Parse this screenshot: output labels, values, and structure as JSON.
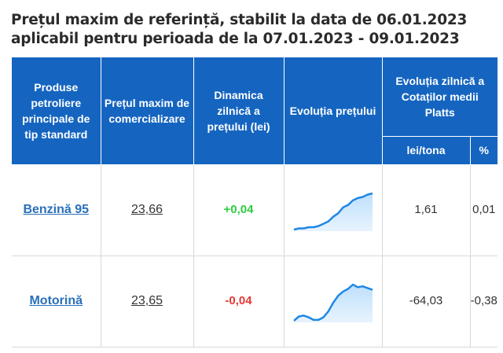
{
  "title_line1": "Prețul maxim de referință, stabilit la data de 06.01.2023",
  "title_line2": "aplicabil pentru perioada de la 07.01.2023 - 09.01.2023",
  "header": {
    "products": "Produse petroliere principale de tip standard",
    "max_price": "Prețul maxim de comercializare",
    "daily_dynamics": "Dinamica zilnică a prețului (lei)",
    "price_evolution": "Evoluția prețului",
    "platts_evolution": "Evoluția zilnică a Cotaților medii Platts",
    "lei_ton": "lei/tona",
    "percent": "%"
  },
  "colors": {
    "header_bg": "#1565c0",
    "up": "#2ecc40",
    "down": "#e53935",
    "link": "#2a6fb8",
    "spark_line": "#1e88e5",
    "spark_fill": "#bbdefb"
  },
  "rows": [
    {
      "product": "Benzină 95",
      "price": "23,66",
      "dynamics": "+0,04",
      "trend": "up",
      "platts_lei_ton": "1,61",
      "platts_percent": "0,01",
      "sparkline": [
        1,
        2,
        2,
        3,
        3,
        4,
        6,
        8,
        12,
        15,
        20,
        22,
        26,
        28,
        29,
        31,
        32
      ]
    },
    {
      "product": "Motorină",
      "price": "23,65",
      "dynamics": "-0,04",
      "trend": "down",
      "platts_lei_ton": "-64,03",
      "platts_percent": "-0,38",
      "sparkline": [
        4,
        9,
        10,
        8,
        5,
        5,
        8,
        15,
        25,
        33,
        38,
        41,
        46,
        43,
        44,
        42,
        40
      ]
    }
  ]
}
